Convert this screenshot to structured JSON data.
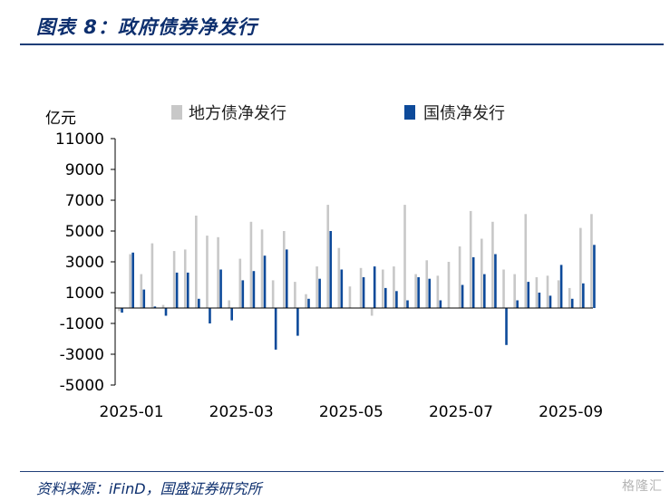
{
  "header": {
    "title": "图表 8：政府债券净发行"
  },
  "footer": {
    "source": "资料来源：iFinD，国盛证券研究所",
    "watermark": "格隆汇"
  },
  "colors": {
    "local": "#c8c8c8",
    "national": "#0d4a9a",
    "title": "#0d2f6e"
  },
  "chart_data": {
    "type": "bar",
    "unit": "亿元",
    "ylim": [
      -5000,
      11000
    ],
    "yticks": [
      11000,
      9000,
      7000,
      5000,
      3000,
      1000,
      -1000,
      -3000,
      -5000
    ],
    "xticks": [
      "2025-01",
      "2025-03",
      "2025-05",
      "2025-07",
      "2025-09"
    ],
    "grid": false,
    "legend_position": "top",
    "categories": [
      "2025-01-W1",
      "2025-01-W2",
      "2025-01-W3",
      "2025-01-W4",
      "2025-01-W5",
      "2025-02-W1",
      "2025-02-W2",
      "2025-02-W3",
      "2025-02-W4",
      "2025-02-W5",
      "2025-03-W1",
      "2025-03-W2",
      "2025-03-W3",
      "2025-03-W4",
      "2025-03-W5",
      "2025-04-W1",
      "2025-04-W2",
      "2025-04-W3",
      "2025-04-W4",
      "2025-04-W5",
      "2025-05-W1",
      "2025-05-W2",
      "2025-05-W3",
      "2025-05-W4",
      "2025-05-W5",
      "2025-06-W1",
      "2025-06-W2",
      "2025-06-W3",
      "2025-06-W4",
      "2025-06-W5",
      "2025-07-W1",
      "2025-07-W2",
      "2025-07-W3",
      "2025-07-W4",
      "2025-07-W5",
      "2025-08-W1",
      "2025-08-W2",
      "2025-08-W3",
      "2025-08-W4",
      "2025-08-W5",
      "2025-09-W1",
      "2025-09-W2",
      "2025-09-W3",
      "2025-09-W4"
    ],
    "series": [
      {
        "name": "地方债净发行",
        "values": [
          -200,
          3500,
          2200,
          4200,
          200,
          3700,
          3800,
          6000,
          4700,
          4600,
          500,
          3200,
          5600,
          5100,
          1800,
          5000,
          1700,
          900,
          2700,
          6700,
          3900,
          1400,
          2600,
          -500,
          2500,
          2700,
          6700,
          2200,
          3100,
          2100,
          3000,
          4000,
          6300,
          4500,
          5600,
          2500,
          2200,
          6100,
          2000,
          2100,
          1800,
          1300,
          5200,
          6100
        ]
      },
      {
        "name": "国债净发行",
        "values": [
          -300,
          3600,
          1200,
          100,
          -500,
          2300,
          2300,
          600,
          -1000,
          2500,
          -800,
          1800,
          2400,
          3400,
          -2700,
          3800,
          -1800,
          600,
          1900,
          5000,
          2500,
          0,
          2000,
          2700,
          1300,
          1100,
          500,
          2000,
          1900,
          500,
          0,
          1500,
          3300,
          2200,
          3500,
          -2400,
          500,
          1700,
          1000,
          800,
          2800,
          600,
          1600,
          4100
        ]
      }
    ]
  }
}
